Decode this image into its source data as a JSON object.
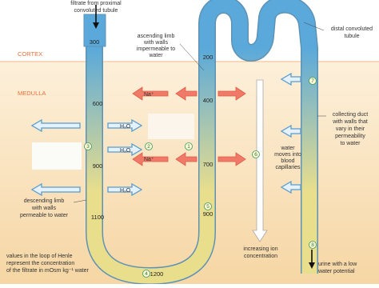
{
  "labels": {
    "filtrate": [
      "filtrate from proximal",
      "convoluted tubule"
    ],
    "ascending": [
      "ascending limb",
      "with walls",
      "impermeable to",
      "water"
    ],
    "distal": [
      "distal convoluted",
      "tubule"
    ],
    "cortex": "CORTEX",
    "medulla": "MEDULLA",
    "descending": [
      "descending limb",
      "with walls",
      "permeable to water"
    ],
    "collecting": [
      "collecting duct",
      "with walls that",
      "vary in their",
      "permeability",
      "to water"
    ],
    "water_moves": [
      "water",
      "moves into",
      "blood",
      "capillaries"
    ],
    "values_note": [
      "values in the loop of Henle",
      "represent the concentration",
      "of the filtrate in mOsm kg⁻¹ water"
    ],
    "increasing": [
      "increasing ion",
      "concentration"
    ],
    "urine": [
      "urine with a low",
      "water potential"
    ],
    "sodium": "Na⁺",
    "water": "H₂O"
  },
  "concentrations": {
    "d300": "300",
    "d600": "600",
    "d900": "900",
    "d1100": "1100",
    "b1200": "1200",
    "a900": "900",
    "a700": "700",
    "a400": "400",
    "a200": "200"
  },
  "steps": [
    "1",
    "2",
    "3",
    "4",
    "5",
    "6",
    "7",
    "8"
  ]
}
